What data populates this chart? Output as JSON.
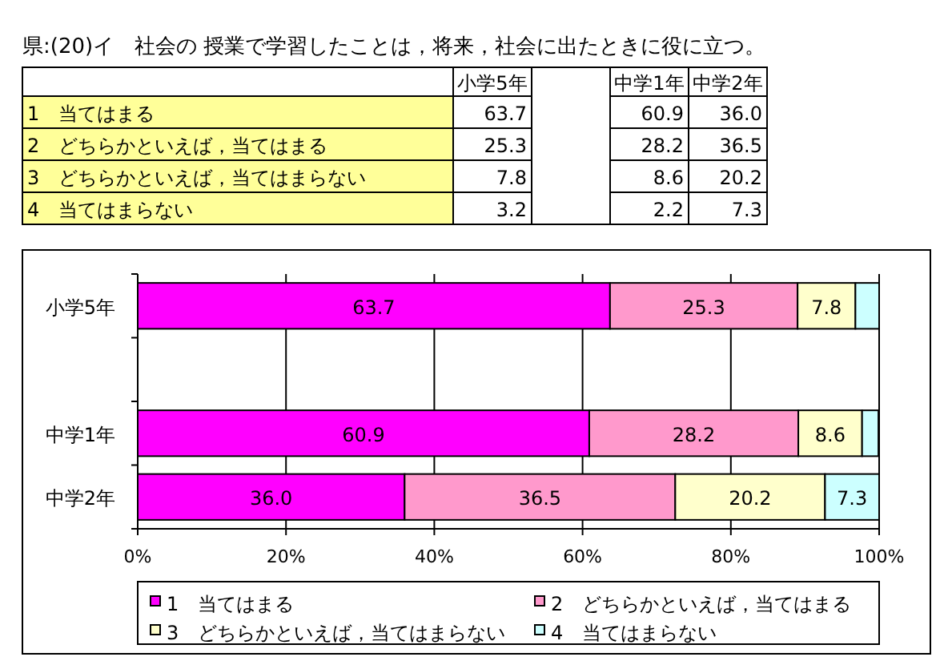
{
  "chart_data": {
    "type": "bar",
    "orientation": "horizontal",
    "stacked": true,
    "title": "県:(20)イ　社会の 授業で学習したことは，将来，社会に出たときに役に立つ。",
    "categories": [
      "小学5年",
      null,
      "中学1年",
      "中学2年"
    ],
    "series": [
      {
        "name": "1　当てはまる",
        "color": "#ff00ff",
        "values": [
          63.7,
          null,
          60.9,
          36.0
        ],
        "value_labels": [
          "63.7",
          null,
          "60.9",
          "36.0"
        ]
      },
      {
        "name": "2　どちらかといえば，当てはまる",
        "color": "#ff99cc",
        "values": [
          25.3,
          null,
          28.2,
          36.5
        ],
        "value_labels": [
          "25.3",
          null,
          "28.2",
          "36.5"
        ]
      },
      {
        "name": "3　どちらかといえば，当てはまらない",
        "color": "#ffffcc",
        "values": [
          7.8,
          null,
          8.6,
          20.2
        ],
        "value_labels": [
          "7.8",
          null,
          "8.6",
          "20.2"
        ]
      },
      {
        "name": "4　当てはまらない",
        "color": "#ccffff",
        "values": [
          3.2,
          null,
          2.2,
          7.3
        ],
        "value_labels": [
          null,
          null,
          null,
          "7.3"
        ]
      }
    ],
    "annotations": [
      "63.7",
      "60.9",
      "36.0",
      "25.3",
      "28.2",
      "36.5",
      "7.8",
      "8.6",
      "20.2",
      "3.2",
      "2.2",
      "7.3"
    ],
    "xlim": [
      0,
      100
    ],
    "xticks": [
      {
        "value": 0,
        "label": "0%"
      },
      {
        "value": 20,
        "label": "20%"
      },
      {
        "value": 40,
        "label": "40%"
      },
      {
        "value": 60,
        "label": "60%"
      },
      {
        "value": 80,
        "label": "80%"
      },
      {
        "value": 100,
        "label": "100%"
      }
    ],
    "grid": "x",
    "legend": "bottom"
  }
}
